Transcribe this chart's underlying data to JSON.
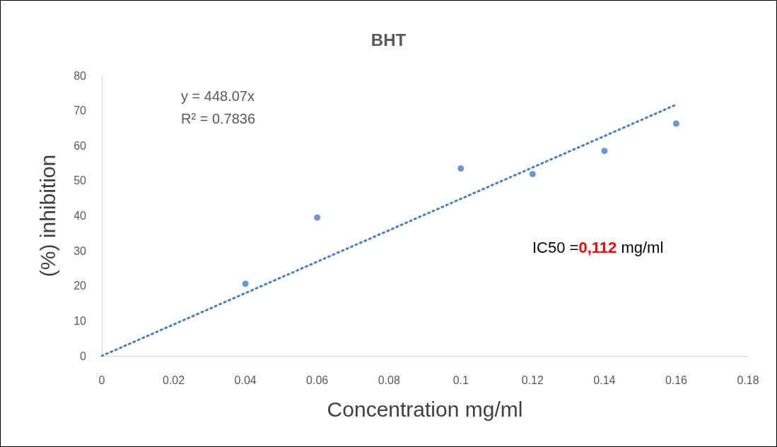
{
  "chart_data": {
    "type": "scatter",
    "title": "BHT",
    "xlabel": "Concentration mg/ml",
    "ylabel": "(%) inhibition",
    "annotations": [
      "y = 448.07x",
      "R² = 0.7836",
      "IC50 =0,112 mg/ml"
    ],
    "series": [
      {
        "color": "#4a7ebb",
        "x": [
          0.04,
          0.06,
          0.1,
          0.12,
          0.14,
          0.16
        ],
        "values": [
          20.6,
          39.5,
          53.5,
          51.9,
          58.5,
          66.3
        ],
        "marker": "circle"
      },
      {
        "type": "line",
        "color": "#4a7ebb",
        "x": [
          0,
          0.16
        ],
        "values": [
          0,
          71.7
        ],
        "line_style": "dotted",
        "marker": "none"
      }
    ],
    "xlim": [
      0,
      0.18
    ],
    "xticks": [
      0,
      0.02,
      0.04,
      0.06,
      0.08,
      0.1,
      0.12,
      0.14,
      0.16,
      0.18
    ],
    "ylim": [
      0,
      80
    ],
    "yticks": [
      0,
      10,
      20,
      30,
      40,
      50,
      60,
      70,
      80
    ],
    "grid": false
  }
}
